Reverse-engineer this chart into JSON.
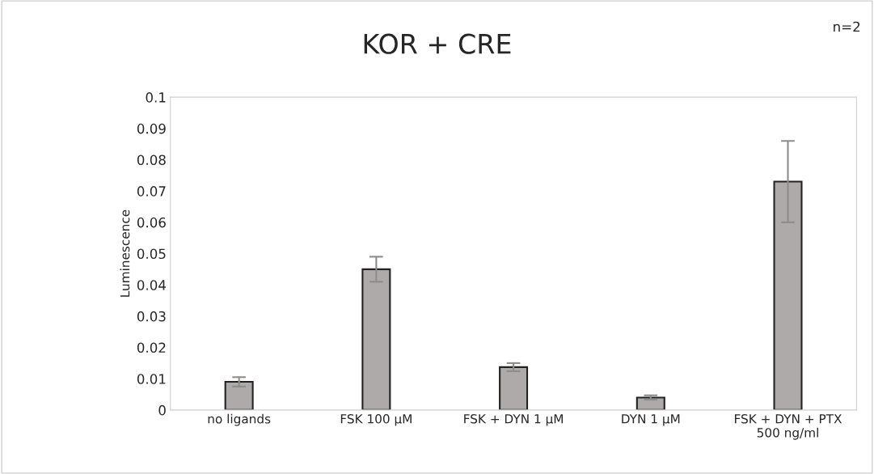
{
  "chart_data": {
    "type": "bar",
    "title": "KOR + CRE",
    "ylabel": "Luminescence",
    "categories": [
      "no ligands",
      "FSK 100 µM",
      "FSK + DYN 1 µM",
      "DYN 1 µM",
      "FSK + DYN + PTX\n500 ng/ml"
    ],
    "values": [
      0.009,
      0.045,
      0.0137,
      0.004,
      0.073
    ],
    "errors": [
      0.0015,
      0.004,
      0.0013,
      0.0007,
      0.013
    ],
    "color": "#aeaaaa",
    "ylim": [
      0,
      0.1
    ],
    "yticks": [
      0,
      0.01,
      0.02,
      0.03,
      0.04,
      0.05,
      0.06,
      0.07,
      0.08,
      0.09,
      0.1
    ],
    "grid": false,
    "annotations": [
      "n=2"
    ]
  }
}
